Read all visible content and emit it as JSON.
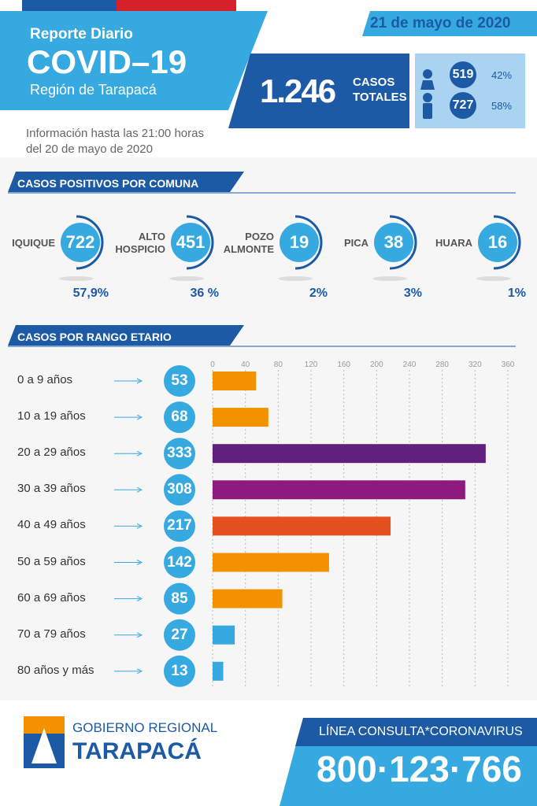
{
  "header": {
    "date": "21 de mayo de 2020",
    "subtitle": "Reporte Diario",
    "title": "COVID–19",
    "region": "Región de Tarapacá",
    "info": "Información hasta las 21:00 horas del 20 de mayo de 2020"
  },
  "total": {
    "value": "1.246",
    "label": "CASOS TOTALES"
  },
  "gender": [
    {
      "value": 519,
      "percent": "42%"
    },
    {
      "value": 727,
      "percent": "58%"
    }
  ],
  "comunas": {
    "title": "CASOS POSITIVOS POR COMUNA",
    "items": [
      {
        "name": "IQUIQUE",
        "value": 722,
        "percent": "57,9%"
      },
      {
        "name": "ALTO HOSPICIO",
        "value": 451,
        "percent": "36 %"
      },
      {
        "name": "POZO ALMONTE",
        "value": 19,
        "percent": "2%"
      },
      {
        "name": "PICA",
        "value": 38,
        "percent": "3%"
      },
      {
        "name": "HUARA",
        "value": 16,
        "percent": "1%"
      }
    ]
  },
  "chart_data": {
    "type": "bar",
    "orientation": "horizontal",
    "title": "CASOS POR RANGO ETARIO",
    "categories": [
      "0 a 9 años",
      "10 a 19 años",
      "20 a 29 años",
      "30 a 39 años",
      "40 a 49 años",
      "50 a 59 años",
      "60 a 69 años",
      "70 a 79 años",
      "80 años y más"
    ],
    "values": [
      53,
      68,
      333,
      308,
      217,
      142,
      85,
      27,
      13
    ],
    "colors": [
      "#f39200",
      "#f39200",
      "#62207e",
      "#8e1a7f",
      "#e6501e",
      "#f39200",
      "#f39200",
      "#36a9e1",
      "#36a9e1"
    ],
    "xlim": [
      0,
      360
    ],
    "xticks": [
      0,
      40,
      80,
      120,
      160,
      200,
      240,
      280,
      320,
      360
    ],
    "grid": true
  },
  "footer": {
    "org_top": "GOBIERNO REGIONAL",
    "org_bottom": "TARAPACÁ",
    "hotline_label": "LÍNEA CONSULTA*CORONAVIRUS",
    "hotline": "800·123·766"
  }
}
